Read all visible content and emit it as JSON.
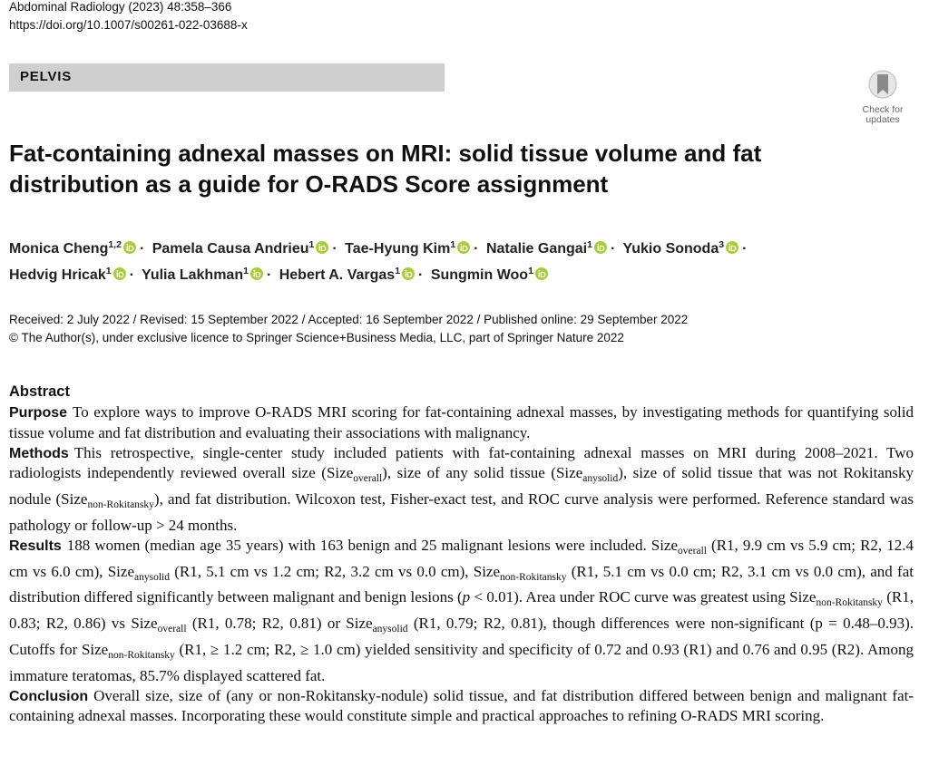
{
  "header": {
    "journal": "Abdominal Radiology (2023) 48:358–366",
    "doi": "https://doi.org/10.1007/s00261-022-03688-x"
  },
  "section": "PELVIS",
  "badge": "Check for updates",
  "title": "Fat-containing adnexal masses on MRI: solid tissue volume and fat distribution as a guide for O-RADS Score assignment",
  "author_separator": "·",
  "authors": [
    {
      "name": "Monica Cheng",
      "aff": "1,2"
    },
    {
      "name": "Pamela Causa Andrieu",
      "aff": "1"
    },
    {
      "name": "Tae-Hyung Kim",
      "aff": "1"
    },
    {
      "name": "Natalie Gangai",
      "aff": "1"
    },
    {
      "name": "Yukio Sonoda",
      "aff": "3"
    },
    {
      "name": "Hedvig Hricak",
      "aff": "1"
    },
    {
      "name": "Yulia Lakhman",
      "aff": "1"
    },
    {
      "name": "Hebert A. Vargas",
      "aff": "1"
    },
    {
      "name": "Sungmin Woo",
      "aff": "1"
    }
  ],
  "dates": "Received: 2 July 2022 / Revised: 15 September 2022 / Accepted: 16 September 2022 / Published online: 29 September 2022",
  "copyright": "© The Author(s), under exclusive licence to Springer Science+Business Media, LLC, part of Springer Nature 2022",
  "abstract": {
    "heading": "Abstract",
    "sections": [
      {
        "label": "Purpose",
        "parts": [
          "To explore ways to improve O-RADS MRI scoring for fat-containing adnexal masses, by investigating methods for quantifying solid tissue volume and fat distribution and evaluating their associations with malignancy."
        ]
      },
      {
        "label": "Methods",
        "parts": [
          "This retrospective, single-center study included patients with fat-containing adnexal masses on MRI during 2008–2021. Two radiologists independently reviewed overall size (Size",
          {
            "sub": "overall"
          },
          "), size of any solid tissue (Size",
          {
            "sub": "anysolid"
          },
          "), size of solid tissue that was not Rokitansky nodule (Size",
          {
            "sub": "non-Rokitansky"
          },
          "), and fat distribution. Wilcoxon test, Fisher-exact test, and ROC curve analysis were performed. Reference standard was pathology or follow-up > 24 months."
        ]
      },
      {
        "label": "Results",
        "parts": [
          "188 women (median age 35 years) with 163 benign and 25 malignant lesions were included. Size",
          {
            "sub": "overall"
          },
          " (R1, 9.9 cm vs 5.9 cm; R2, 12.4 cm vs 6.0 cm), Size",
          {
            "sub": "anysolid"
          },
          " (R1, 5.1 cm vs 1.2 cm; R2, 3.2 cm vs 0.0 cm), Size",
          {
            "sub": "non-Rokitansky"
          },
          " (R1, 5.1 cm vs 0.0 cm; R2, 3.1 cm vs 0.0 cm), and fat distribution differed significantly between malignant and benign lesions (",
          {
            "i": "p"
          },
          " < 0.01). Area under ROC curve was greatest using Size",
          {
            "sub": "non-Rokitansky"
          },
          " (R1, 0.83; R2, 0.86) vs Size",
          {
            "sub": "overall"
          },
          " (R1, 0.78; R2, 0.81) or Size",
          {
            "sub": "anysolid"
          },
          " (R1, 0.79; R2, 0.81), though differences were non-significant (p = 0.48–0.93). Cutoffs for Size",
          {
            "sub": "non-Rokitansky"
          },
          " (R1, ≥ 1.2 cm; R2, ≥ 1.0 cm) yielded sensitivity and specificity of 0.72 and 0.93 (R1) and 0.76 and 0.95 (R2). Among immature teratomas, 85.7% displayed scattered fat."
        ]
      },
      {
        "label": "Conclusion",
        "parts": [
          "Overall size, size of (any or non-Rokitansky-nodule) solid tissue, and fat distribution differed between benign and malignant fat-containing adnexal masses. Incorporating these would constitute simple and practical approaches to refining O-RADS MRI scoring."
        ]
      }
    ]
  }
}
